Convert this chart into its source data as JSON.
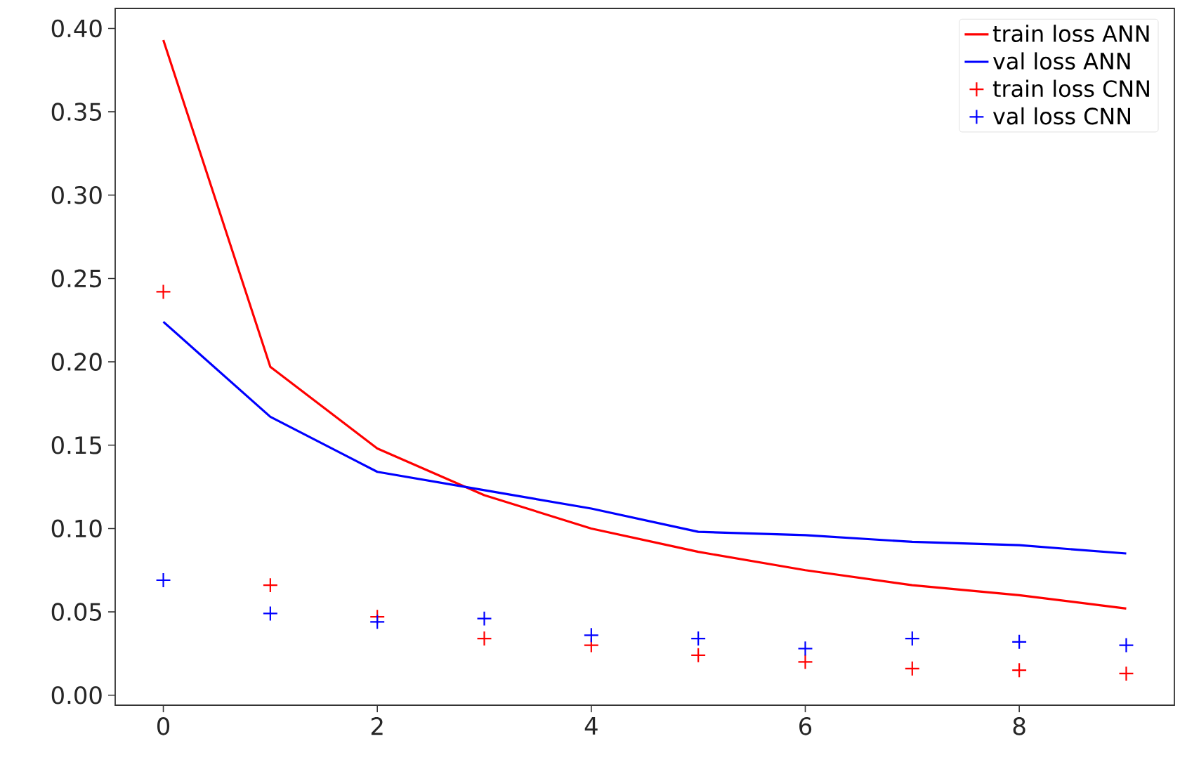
{
  "chart_data": {
    "type": "line",
    "x": [
      0,
      1,
      2,
      3,
      4,
      5,
      6,
      7,
      8,
      9
    ],
    "xlim": [
      -0.45,
      9.45
    ],
    "ylim": [
      -0.006,
      0.412
    ],
    "xticks": [
      0,
      2,
      4,
      6,
      8
    ],
    "yticks": [
      {
        "value": 0,
        "label": "0.00"
      },
      {
        "value": 0.05,
        "label": "0.05"
      },
      {
        "value": 0.1,
        "label": "0.10"
      },
      {
        "value": 0.15,
        "label": "0.15"
      },
      {
        "value": 0.2,
        "label": "0.20"
      },
      {
        "value": 0.25,
        "label": "0.25"
      },
      {
        "value": 0.3,
        "label": "0.30"
      },
      {
        "value": 0.35,
        "label": "0.35"
      },
      {
        "value": 0.4,
        "label": "0.40"
      }
    ],
    "legend": "top right",
    "grid": false,
    "series": [
      {
        "name": "train loss ANN",
        "color": "#ff0000",
        "marker": "none",
        "values": [
          0.393,
          0.197,
          0.148,
          0.12,
          0.1,
          0.086,
          0.075,
          0.066,
          0.06,
          0.052
        ]
      },
      {
        "name": "val loss ANN",
        "color": "#0000ff",
        "marker": "none",
        "values": [
          0.224,
          0.167,
          0.134,
          0.123,
          0.112,
          0.098,
          0.096,
          0.092,
          0.09,
          0.085
        ]
      },
      {
        "name": "train loss CNN",
        "color": "#ff0000",
        "type": "scatter",
        "marker": "cross",
        "values": [
          0.242,
          0.066,
          0.047,
          0.034,
          0.03,
          0.024,
          0.02,
          0.016,
          0.015,
          0.013
        ]
      },
      {
        "name": "val loss CNN",
        "color": "#0000ff",
        "type": "scatter",
        "marker": "cross",
        "values": [
          0.069,
          0.049,
          0.044,
          0.046,
          0.036,
          0.034,
          0.028,
          0.034,
          0.032,
          0.03
        ]
      }
    ]
  }
}
